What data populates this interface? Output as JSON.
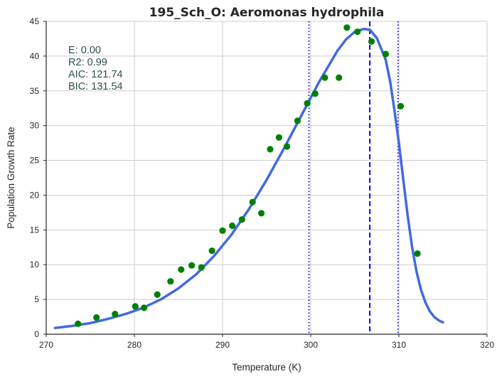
{
  "chart_data": {
    "type": "scatter",
    "title": "195_Sch_O: Aeromonas hydrophila",
    "xlabel": "Temperature (K)",
    "ylabel": "Population Growth Rate",
    "xlim": [
      270,
      320
    ],
    "ylim": [
      0,
      45
    ],
    "xticks": [
      270,
      280,
      290,
      300,
      310,
      320
    ],
    "yticks": [
      0,
      5,
      10,
      15,
      20,
      25,
      30,
      35,
      40,
      45
    ],
    "grid": true,
    "points": {
      "color": "#008000",
      "x": [
        273.6,
        275.7,
        277.8,
        280.1,
        281.1,
        282.6,
        284.1,
        285.3,
        286.5,
        287.6,
        288.8,
        290.0,
        291.1,
        292.2,
        293.4,
        294.4,
        295.4,
        296.4,
        297.3,
        298.5,
        299.6,
        300.5,
        301.6,
        303.2,
        304.1,
        305.3,
        306.9,
        308.5,
        310.2,
        312.1
      ],
      "y": [
        1.5,
        2.4,
        2.9,
        4.0,
        3.8,
        5.7,
        7.6,
        9.3,
        9.9,
        9.6,
        12.0,
        14.9,
        15.6,
        16.5,
        19.0,
        17.4,
        26.6,
        28.3,
        27.0,
        30.7,
        33.2,
        34.6,
        36.9,
        36.9,
        44.1,
        43.5,
        42.1,
        40.3,
        32.8,
        11.6
      ]
    },
    "fit_curve": {
      "color": "#4169e1",
      "x": [
        271,
        273,
        275,
        277,
        279,
        281,
        283,
        285,
        287,
        289,
        291,
        293,
        295,
        297,
        299,
        301,
        303,
        304,
        305,
        306,
        306.7,
        307.5,
        308.5,
        309,
        309.5,
        310,
        310.5,
        311,
        311.5,
        312,
        312.5,
        313,
        313.5,
        314,
        314.5,
        315
      ],
      "y": [
        0.9,
        1.2,
        1.6,
        2.2,
        2.9,
        3.8,
        5.0,
        6.6,
        8.6,
        11.2,
        14.3,
        18.0,
        22.2,
        26.8,
        31.6,
        36.4,
        40.7,
        42.4,
        43.5,
        43.9,
        43.8,
        42.6,
        39.5,
        36.4,
        32.2,
        27.5,
        22.2,
        17.0,
        12.5,
        9.0,
        6.4,
        4.6,
        3.3,
        2.5,
        2.0,
        1.7
      ]
    },
    "vlines": [
      {
        "x": 306.7,
        "style": "dashed",
        "color": "#0000ff"
      },
      {
        "x": 299.8,
        "style": "dotted",
        "color": "#0000ff"
      },
      {
        "x": 309.9,
        "style": "dotted",
        "color": "#0000ff"
      }
    ],
    "stats": [
      "E:  0.00",
      "R2:  0.99",
      "AIC: 121.74",
      "BIC: 131.54"
    ]
  }
}
